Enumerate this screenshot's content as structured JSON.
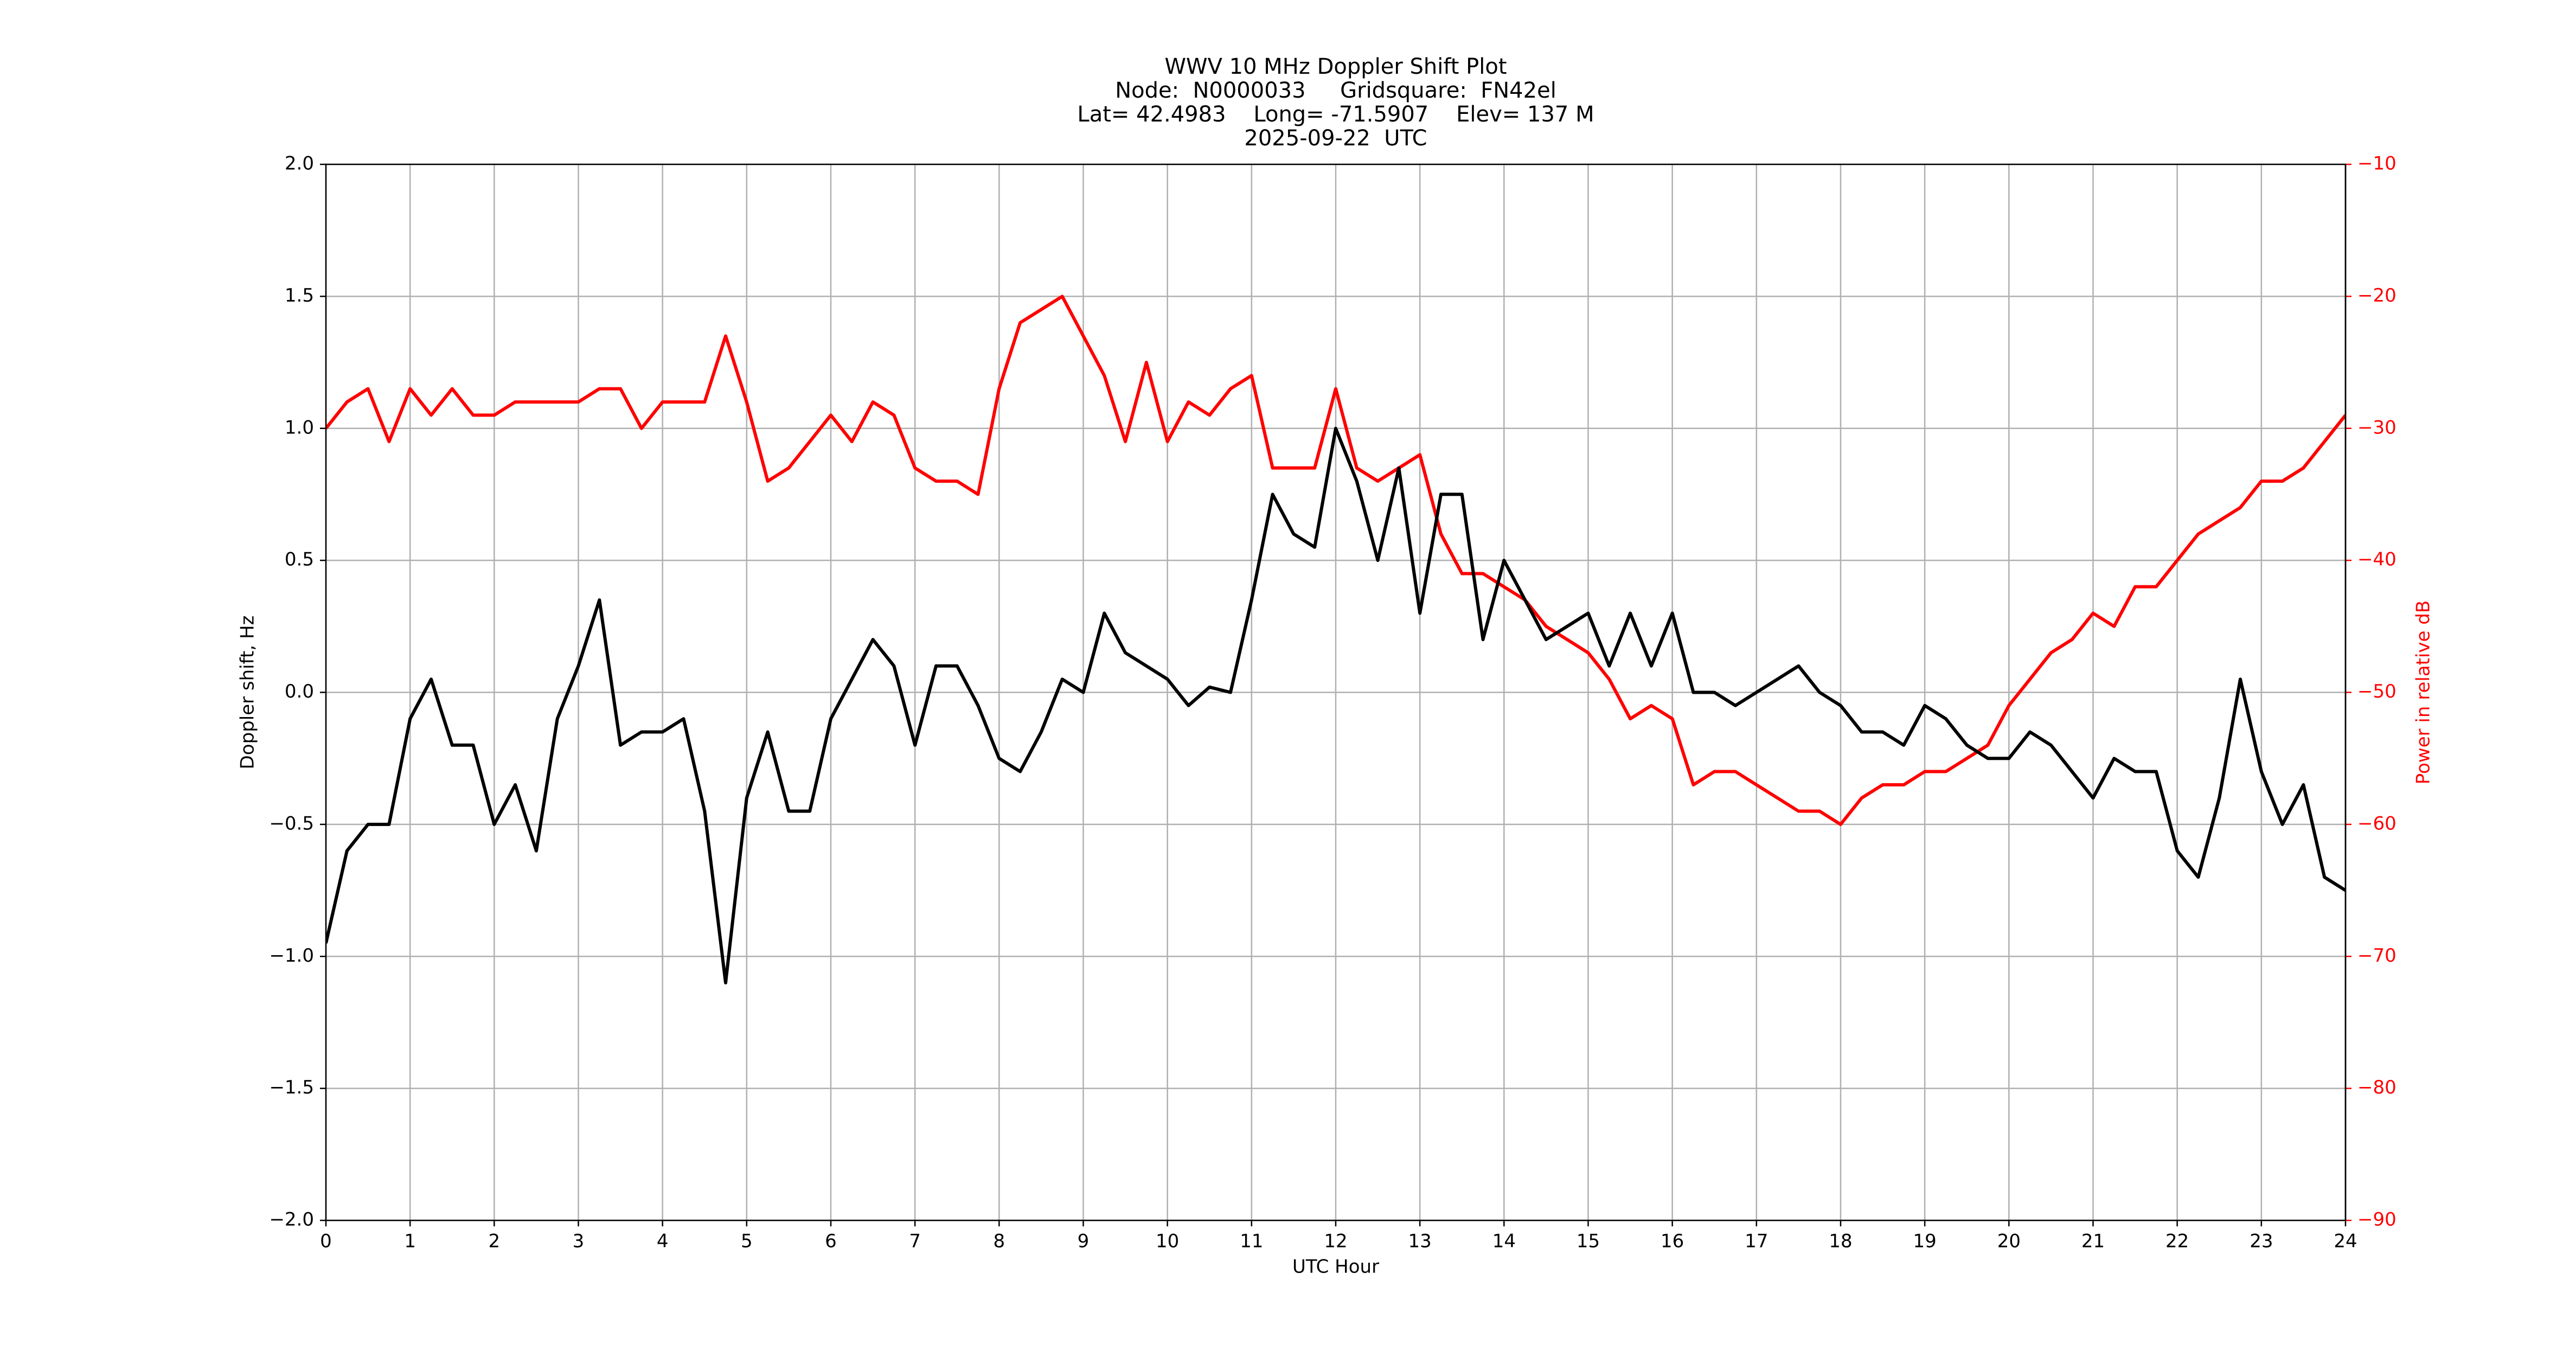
{
  "chart_data": {
    "type": "line",
    "title": [
      "WWV 10 MHz Doppler Shift Plot",
      "Node:  N0000033     Gridsquare:  FN42el",
      "Lat= 42.4983    Long= -71.5907    Elev= 137 M",
      "2025-09-22  UTC"
    ],
    "xlabel": "UTC Hour",
    "ylabel": "Doppler shift, Hz",
    "y2label": "Power in relative dB",
    "x": [
      0,
      0.25,
      0.5,
      0.75,
      1,
      1.25,
      1.5,
      1.75,
      2,
      2.25,
      2.5,
      2.75,
      3,
      3.25,
      3.5,
      3.75,
      4,
      4.25,
      4.5,
      4.75,
      5,
      5.25,
      5.5,
      5.75,
      6,
      6.25,
      6.5,
      6.75,
      7,
      7.25,
      7.5,
      7.75,
      8,
      8.25,
      8.5,
      8.75,
      9,
      9.25,
      9.5,
      9.75,
      10,
      10.25,
      10.5,
      10.75,
      11,
      11.25,
      11.5,
      11.75,
      12,
      12.25,
      12.5,
      12.75,
      13,
      13.25,
      13.5,
      13.75,
      14,
      14.25,
      14.5,
      14.75,
      15,
      15.25,
      15.5,
      15.75,
      16,
      16.25,
      16.5,
      16.75,
      17,
      17.25,
      17.5,
      17.75,
      18,
      18.25,
      18.5,
      18.75,
      19,
      19.25,
      19.5,
      19.75,
      20,
      20.25,
      20.5,
      20.75,
      21,
      21.25,
      21.5,
      21.75,
      22,
      22.25,
      22.5,
      22.75,
      23,
      23.25,
      23.5,
      23.75,
      24
    ],
    "series": [
      {
        "name": "Doppler shift",
        "color": "#000000",
        "axis": "y",
        "values": [
          -0.95,
          -0.6,
          -0.5,
          -0.5,
          -0.1,
          0.05,
          -0.2,
          -0.2,
          -0.5,
          -0.35,
          -0.6,
          -0.1,
          0.1,
          0.35,
          -0.2,
          -0.15,
          -0.15,
          -0.1,
          -0.45,
          -1.1,
          -0.4,
          -0.15,
          -0.45,
          -0.45,
          -0.1,
          0.05,
          0.2,
          0.1,
          -0.2,
          0.1,
          0.1,
          -0.05,
          -0.25,
          -0.3,
          -0.15,
          0.05,
          0.0,
          0.3,
          0.15,
          0.1,
          0.05,
          -0.05,
          0.02,
          0.0,
          0.35,
          0.75,
          0.6,
          0.55,
          1.0,
          0.8,
          0.5,
          0.85,
          0.3,
          0.75,
          0.75,
          0.2,
          0.5,
          0.35,
          0.2,
          0.25,
          0.3,
          0.1,
          0.3,
          0.1,
          0.3,
          0.0,
          0.0,
          -0.05,
          0.0,
          0.05,
          0.1,
          0.0,
          -0.05,
          -0.15,
          -0.15,
          -0.2,
          -0.05,
          -0.1,
          -0.2,
          -0.25,
          -0.25,
          -0.15,
          -0.2,
          -0.3,
          -0.4,
          -0.25,
          -0.3,
          -0.3,
          -0.6,
          -0.7,
          -0.4,
          0.05,
          -0.3,
          -0.5,
          -0.35,
          -0.7,
          -0.75
        ]
      },
      {
        "name": "Power",
        "color": "#ff0000",
        "axis": "y2",
        "values": [
          -30,
          -28,
          -27,
          -31,
          -27,
          -29,
          -27,
          -29,
          -29,
          -28,
          -28,
          -28,
          -28,
          -27,
          -27,
          -30,
          -28,
          -28,
          -28,
          -23,
          -28,
          -34,
          -33,
          -31,
          -29,
          -31,
          -28,
          -29,
          -33,
          -34,
          -34,
          -35,
          -27,
          -22,
          -21,
          -20,
          -23,
          -26,
          -31,
          -25,
          -31,
          -28,
          -29,
          -27,
          -26,
          -33,
          -33,
          -33,
          -27,
          -33,
          -34,
          -33,
          -32,
          -38,
          -41,
          -41,
          -42,
          -43,
          -45,
          -46,
          -47,
          -49,
          -52,
          -51,
          -52,
          -57,
          -56,
          -56,
          -57,
          -58,
          -59,
          -59,
          -60,
          -58,
          -57,
          -57,
          -56,
          -56,
          -55,
          -54,
          -51,
          -49,
          -47,
          -46,
          -44,
          -45,
          -42,
          -42,
          -40,
          -38,
          -37,
          -36,
          -34,
          -34,
          -33,
          -31,
          -29
        ]
      }
    ],
    "xlim": [
      0,
      24
    ],
    "xticks": [
      0,
      1,
      2,
      3,
      4,
      5,
      6,
      7,
      8,
      9,
      10,
      11,
      12,
      13,
      14,
      15,
      16,
      17,
      18,
      19,
      20,
      21,
      22,
      23,
      24
    ],
    "ylim": [
      -2,
      2
    ],
    "yticks": [
      {
        "value": -2,
        "label": "−2.0"
      },
      {
        "value": -1.5,
        "label": "−1.5"
      },
      {
        "value": -1,
        "label": "−1.0"
      },
      {
        "value": -0.5,
        "label": "−0.5"
      },
      {
        "value": 0,
        "label": "0.0"
      },
      {
        "value": 0.5,
        "label": "0.5"
      },
      {
        "value": 1,
        "label": "1.0"
      },
      {
        "value": 1.5,
        "label": "1.5"
      },
      {
        "value": 2,
        "label": "2.0"
      }
    ],
    "y2lim": [
      -90,
      -10
    ],
    "y2ticks": [
      {
        "value": -90,
        "label": "−90"
      },
      {
        "value": -80,
        "label": "−80"
      },
      {
        "value": -70,
        "label": "−70"
      },
      {
        "value": -60,
        "label": "−60"
      },
      {
        "value": -50,
        "label": "−50"
      },
      {
        "value": -40,
        "label": "−40"
      },
      {
        "value": -30,
        "label": "−30"
      },
      {
        "value": -20,
        "label": "−20"
      },
      {
        "value": -10,
        "label": "−10"
      }
    ],
    "y2color": "#ff0000",
    "grid": true
  }
}
